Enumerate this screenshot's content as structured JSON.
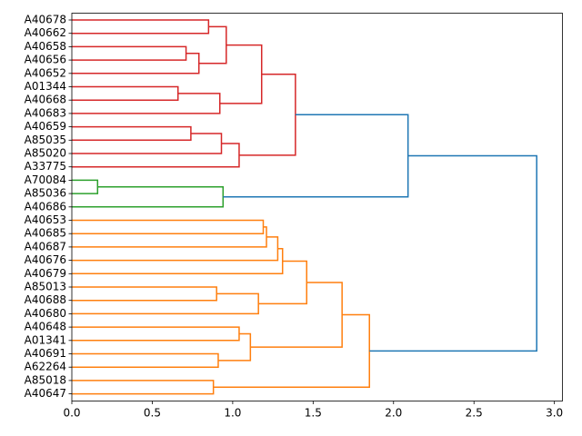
{
  "chart_data": {
    "type": "dendrogram",
    "orientation": "left",
    "title": "",
    "xlabel": "",
    "ylabel": "",
    "xlim": [
      0,
      3.05
    ],
    "xticks": [
      0.0,
      0.5,
      1.0,
      1.5,
      2.0,
      2.5,
      3.0
    ],
    "xtick_labels": [
      "0.0",
      "0.5",
      "1.0",
      "1.5",
      "2.0",
      "2.5",
      "3.0"
    ],
    "grid": false,
    "leaves": [
      "A40678",
      "A40662",
      "A40658",
      "A40656",
      "A40652",
      "A01344",
      "A40668",
      "A40683",
      "A40659",
      "A85035",
      "A85020",
      "A33775",
      "A70084",
      "A85036",
      "A40686",
      "A40653",
      "A40685",
      "A40687",
      "A40676",
      "A40679",
      "A85013",
      "A40688",
      "A40680",
      "A40648",
      "A01341",
      "A40691",
      "A62264",
      "A85018",
      "A40647"
    ],
    "colors": {
      "red": "#d62728",
      "green": "#2ca02c",
      "orange": "#ff7f0e",
      "blue": "#1f77b4"
    },
    "merges": [
      {
        "a": [
          "leaf",
          0
        ],
        "b": [
          "leaf",
          1
        ],
        "height": 0.85,
        "color": "red"
      },
      {
        "a": [
          "leaf",
          2
        ],
        "b": [
          "leaf",
          3
        ],
        "height": 0.71,
        "color": "red"
      },
      {
        "a": [
          "merge",
          1
        ],
        "b": [
          "leaf",
          4
        ],
        "height": 0.79,
        "color": "red"
      },
      {
        "a": [
          "merge",
          0
        ],
        "b": [
          "merge",
          2
        ],
        "height": 0.96,
        "color": "red"
      },
      {
        "a": [
          "leaf",
          5
        ],
        "b": [
          "leaf",
          6
        ],
        "height": 0.66,
        "color": "red"
      },
      {
        "a": [
          "merge",
          4
        ],
        "b": [
          "leaf",
          7
        ],
        "height": 0.92,
        "color": "red"
      },
      {
        "a": [
          "merge",
          3
        ],
        "b": [
          "merge",
          5
        ],
        "height": 1.18,
        "color": "red"
      },
      {
        "a": [
          "leaf",
          8
        ],
        "b": [
          "leaf",
          9
        ],
        "height": 0.74,
        "color": "red"
      },
      {
        "a": [
          "merge",
          7
        ],
        "b": [
          "leaf",
          10
        ],
        "height": 0.93,
        "color": "red"
      },
      {
        "a": [
          "merge",
          8
        ],
        "b": [
          "leaf",
          11
        ],
        "height": 1.04,
        "color": "red"
      },
      {
        "a": [
          "merge",
          6
        ],
        "b": [
          "merge",
          9
        ],
        "height": 1.39,
        "color": "red"
      },
      {
        "a": [
          "leaf",
          12
        ],
        "b": [
          "leaf",
          13
        ],
        "height": 0.16,
        "color": "green"
      },
      {
        "a": [
          "merge",
          11
        ],
        "b": [
          "leaf",
          14
        ],
        "height": 0.94,
        "color": "green"
      },
      {
        "a": [
          "merge",
          10
        ],
        "b": [
          "merge",
          12
        ],
        "height": 2.09,
        "color": "blue"
      },
      {
        "a": [
          "leaf",
          15
        ],
        "b": [
          "leaf",
          16
        ],
        "height": 1.19,
        "color": "orange"
      },
      {
        "a": [
          "merge",
          14
        ],
        "b": [
          "leaf",
          17
        ],
        "height": 1.21,
        "color": "orange"
      },
      {
        "a": [
          "merge",
          15
        ],
        "b": [
          "leaf",
          18
        ],
        "height": 1.28,
        "color": "orange"
      },
      {
        "a": [
          "merge",
          16
        ],
        "b": [
          "leaf",
          19
        ],
        "height": 1.31,
        "color": "orange"
      },
      {
        "a": [
          "leaf",
          20
        ],
        "b": [
          "leaf",
          21
        ],
        "height": 0.9,
        "color": "orange"
      },
      {
        "a": [
          "merge",
          18
        ],
        "b": [
          "leaf",
          22
        ],
        "height": 1.16,
        "color": "orange"
      },
      {
        "a": [
          "merge",
          17
        ],
        "b": [
          "merge",
          19
        ],
        "height": 1.46,
        "color": "orange"
      },
      {
        "a": [
          "leaf",
          23
        ],
        "b": [
          "leaf",
          24
        ],
        "height": 1.04,
        "color": "orange"
      },
      {
        "a": [
          "leaf",
          25
        ],
        "b": [
          "leaf",
          26
        ],
        "height": 0.91,
        "color": "orange"
      },
      {
        "a": [
          "merge",
          21
        ],
        "b": [
          "merge",
          22
        ],
        "height": 1.11,
        "color": "orange"
      },
      {
        "a": [
          "merge",
          20
        ],
        "b": [
          "merge",
          23
        ],
        "height": 1.68,
        "color": "orange"
      },
      {
        "a": [
          "leaf",
          27
        ],
        "b": [
          "leaf",
          28
        ],
        "height": 0.88,
        "color": "orange"
      },
      {
        "a": [
          "merge",
          24
        ],
        "b": [
          "merge",
          25
        ],
        "height": 1.85,
        "color": "orange"
      },
      {
        "a": [
          "merge",
          13
        ],
        "b": [
          "merge",
          26
        ],
        "height": 2.89,
        "color": "blue"
      }
    ]
  }
}
